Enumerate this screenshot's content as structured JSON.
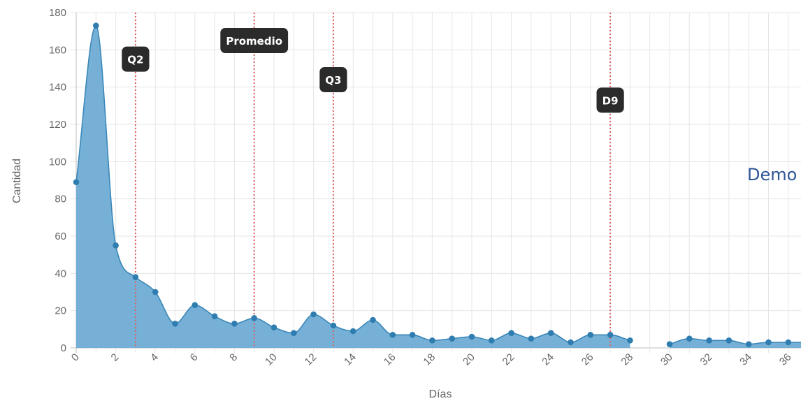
{
  "chart_data": {
    "type": "area",
    "title": "",
    "xlabel": "Días",
    "ylabel": "Cantidad",
    "ylim": [
      0,
      180
    ],
    "xlim": [
      0,
      38
    ],
    "y_ticks": [
      0,
      20,
      40,
      60,
      80,
      100,
      120,
      140,
      160,
      180
    ],
    "x_ticks": [
      0,
      2,
      4,
      6,
      8,
      10,
      12,
      14,
      16,
      18,
      20,
      22,
      24,
      26,
      28,
      30,
      32,
      34,
      36
    ],
    "grid": true,
    "series": [
      {
        "color": "#3a87b8",
        "fill": "#6aa9d2",
        "points": [
          [
            0,
            89
          ],
          [
            1,
            173
          ],
          [
            2,
            55
          ],
          [
            3,
            38
          ],
          [
            4,
            30
          ],
          [
            5,
            13
          ],
          [
            6,
            23
          ],
          [
            7,
            17
          ],
          [
            8,
            13
          ],
          [
            9,
            16
          ],
          [
            10,
            11
          ],
          [
            11,
            8
          ],
          [
            12,
            18
          ],
          [
            13,
            12
          ],
          [
            14,
            9
          ],
          [
            15,
            15
          ],
          [
            16,
            7
          ],
          [
            17,
            7
          ],
          [
            18,
            4
          ],
          [
            19,
            5
          ],
          [
            20,
            6
          ],
          [
            21,
            4
          ],
          [
            22,
            8
          ],
          [
            23,
            5
          ],
          [
            24,
            8
          ],
          [
            25,
            3
          ],
          [
            26,
            7
          ],
          [
            27,
            7
          ],
          [
            28,
            4
          ],
          null,
          [
            30,
            2
          ],
          [
            31,
            5
          ],
          [
            32,
            4
          ],
          [
            33,
            4
          ],
          [
            34,
            2
          ],
          [
            35,
            3
          ],
          [
            36,
            3
          ],
          [
            37,
            3
          ]
        ]
      }
    ],
    "annotations": [
      {
        "label": "Q2",
        "x": 3,
        "badge_y": 155
      },
      {
        "label": "Promedio",
        "x": 9,
        "badge_y": 165
      },
      {
        "label": "Q3",
        "x": 13,
        "badge_y": 144
      },
      {
        "label": "D9",
        "x": 27,
        "badge_y": 133
      }
    ],
    "annotation_line_color": "#e06060"
  },
  "side_text": "Demo"
}
